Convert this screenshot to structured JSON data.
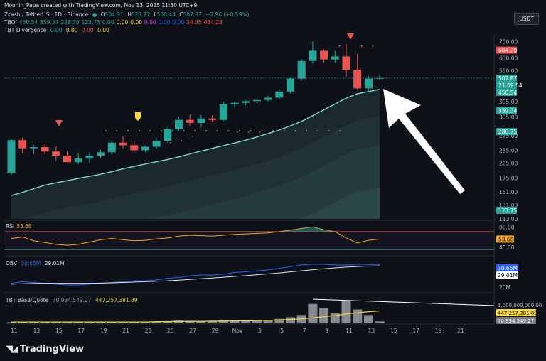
{
  "header": {
    "credit": "Moonin_Papa created with TradingView.com, Nov 13, 2025 11:50 UTC+9",
    "symbol": "Zcash / TetherUS · 1D · Binance",
    "ohlc": {
      "o_label": "O",
      "o": "504.91",
      "h_label": "H",
      "h": "528.77",
      "l_label": "L",
      "l": "500.44",
      "c_label": "C",
      "c": "507.87",
      "chg": "+2.96 (+0.59%)"
    },
    "tbo": {
      "label": "TBO",
      "values": [
        "450.54",
        "359.34",
        "286.75",
        "123.75",
        "0.00",
        "0.00",
        "0.00",
        "0.00",
        "0.00",
        "0.00",
        "34.85",
        "684.28"
      ]
    },
    "divergence": {
      "label": "TBT Divergence",
      "values": [
        "0.00",
        "0.00",
        "0.00",
        "0.00"
      ]
    },
    "currency": "USDT"
  },
  "colors": {
    "up": "#26a69a",
    "down": "#ef5350",
    "band": "#7fd8c8",
    "rsi": "#f5a623",
    "obv": "#2962ff",
    "obv_ma": "#e0e3eb",
    "volume": "#9598a1",
    "vol_ma": "#f5d742",
    "arrow": "#ffffff",
    "accent": "#f5d742"
  },
  "price_axis": {
    "ticks": [
      "750.00",
      "630.00",
      "550.00",
      "395.00",
      "335.00",
      "275.00",
      "235.00",
      "205.00",
      "175.00",
      "151.00",
      "131.00",
      "113.00"
    ],
    "badges": [
      {
        "text": "684.28",
        "color": "#ef5350"
      },
      {
        "text": "507.87",
        "color": "#26a69a"
      },
      {
        "text": "21:09:54",
        "color": "#26a69a"
      },
      {
        "text": "450.54",
        "color": "#26a69a"
      },
      {
        "text": "359.34",
        "color": "#26a69a"
      },
      {
        "text": "286.75",
        "color": "#26a69a"
      },
      {
        "text": "123.75",
        "color": "#26a69a"
      }
    ]
  },
  "x_axis": {
    "ticks": [
      "11",
      "13",
      "15",
      "17",
      "19",
      "21",
      "23",
      "25",
      "27",
      "29",
      "Nov",
      "3",
      "5",
      "7",
      "9",
      "11",
      "13",
      "15",
      "17",
      "19",
      "21"
    ]
  },
  "rsi": {
    "label": "RSI",
    "value": "53.68",
    "ticks": [
      "80.00",
      "40.00"
    ],
    "badge": "53.68",
    "upper": 70,
    "lower": 30
  },
  "obv": {
    "label": "OBV",
    "value1": "30.65M",
    "value2": "29.01M",
    "badges": [
      "30.65M",
      "29.01M"
    ],
    "tick": "20M"
  },
  "volume_pane": {
    "label": "TBT Base/Quote",
    "value1": "70,934,549.27",
    "value2": "447,257,381.89",
    "tick": "1,000,000,000.00",
    "badges": [
      "447,257,381.89",
      "70,934,549.27"
    ]
  },
  "chart_data": {
    "type": "candlestick",
    "symbol": "ZEC/USDT",
    "timeframe": "1D",
    "candles": [
      {
        "o": 185,
        "h": 265,
        "l": 180,
        "c": 262
      },
      {
        "o": 262,
        "h": 270,
        "l": 228,
        "c": 240
      },
      {
        "o": 240,
        "h": 250,
        "l": 225,
        "c": 243
      },
      {
        "o": 243,
        "h": 252,
        "l": 225,
        "c": 232
      },
      {
        "o": 232,
        "h": 245,
        "l": 210,
        "c": 222
      },
      {
        "o": 222,
        "h": 232,
        "l": 212,
        "c": 207
      },
      {
        "o": 207,
        "h": 228,
        "l": 203,
        "c": 215
      },
      {
        "o": 215,
        "h": 230,
        "l": 205,
        "c": 222
      },
      {
        "o": 222,
        "h": 236,
        "l": 215,
        "c": 230
      },
      {
        "o": 230,
        "h": 262,
        "l": 225,
        "c": 255
      },
      {
        "o": 255,
        "h": 272,
        "l": 240,
        "c": 248
      },
      {
        "o": 248,
        "h": 258,
        "l": 228,
        "c": 235
      },
      {
        "o": 235,
        "h": 248,
        "l": 230,
        "c": 244
      },
      {
        "o": 244,
        "h": 268,
        "l": 238,
        "c": 260
      },
      {
        "o": 260,
        "h": 300,
        "l": 255,
        "c": 295
      },
      {
        "o": 295,
        "h": 335,
        "l": 290,
        "c": 325
      },
      {
        "o": 325,
        "h": 345,
        "l": 305,
        "c": 315
      },
      {
        "o": 315,
        "h": 342,
        "l": 300,
        "c": 330
      },
      {
        "o": 330,
        "h": 340,
        "l": 318,
        "c": 325
      },
      {
        "o": 325,
        "h": 395,
        "l": 320,
        "c": 385
      },
      {
        "o": 385,
        "h": 395,
        "l": 370,
        "c": 390
      },
      {
        "o": 390,
        "h": 402,
        "l": 380,
        "c": 397
      },
      {
        "o": 397,
        "h": 408,
        "l": 388,
        "c": 402
      },
      {
        "o": 402,
        "h": 420,
        "l": 395,
        "c": 412
      },
      {
        "o": 412,
        "h": 450,
        "l": 405,
        "c": 440
      },
      {
        "o": 440,
        "h": 510,
        "l": 432,
        "c": 505
      },
      {
        "o": 505,
        "h": 620,
        "l": 495,
        "c": 610
      },
      {
        "o": 610,
        "h": 750,
        "l": 595,
        "c": 680
      },
      {
        "o": 680,
        "h": 690,
        "l": 600,
        "c": 620
      },
      {
        "o": 620,
        "h": 680,
        "l": 600,
        "c": 640
      },
      {
        "o": 640,
        "h": 730,
        "l": 515,
        "c": 555
      },
      {
        "o": 555,
        "h": 660,
        "l": 450,
        "c": 455
      },
      {
        "o": 455,
        "h": 520,
        "l": 440,
        "c": 505
      },
      {
        "o": 504.91,
        "h": 528.77,
        "l": 500.44,
        "c": 507.87
      }
    ],
    "band_upper": [
      145,
      150,
      156,
      162,
      166,
      170,
      174,
      178,
      182,
      187,
      193,
      198,
      203,
      208,
      213,
      219,
      226,
      233,
      240,
      247,
      254,
      262,
      271,
      281,
      292,
      305,
      320,
      340,
      362,
      385,
      410,
      430,
      440,
      450.54
    ],
    "rsi_values": [
      55,
      58,
      50,
      46,
      42,
      40,
      42,
      47,
      52,
      55,
      52,
      50,
      51,
      54,
      56,
      60,
      62,
      61,
      60,
      62,
      64,
      65,
      66,
      67,
      70,
      73,
      77,
      80,
      74,
      70,
      56,
      45,
      51,
      53.68
    ],
    "obv_values": [
      8,
      10,
      9,
      8,
      7,
      6,
      6,
      7,
      8,
      9,
      10,
      11,
      11,
      12,
      14,
      15,
      17,
      18,
      18,
      19,
      21,
      22,
      23,
      24,
      26,
      28,
      30,
      31,
      31,
      30,
      30,
      31,
      30.5,
      30.65
    ],
    "obv_ma": [
      7,
      7.5,
      7.8,
      8,
      8,
      8,
      8,
      8,
      8.3,
      8.6,
      9,
      9.5,
      10,
      10.5,
      11,
      11.8,
      12.6,
      13.5,
      14.4,
      15.3,
      16.3,
      17.3,
      18.3,
      19.3,
      20.5,
      21.7,
      23,
      24.3,
      25.5,
      26.6,
      27.5,
      28.2,
      28.7,
      29.01
    ],
    "volume_values": [
      0.04,
      0.05,
      0.04,
      0.04,
      0.05,
      0.04,
      0.04,
      0.04,
      0.05,
      0.05,
      0.06,
      0.05,
      0.05,
      0.06,
      0.08,
      0.1,
      0.09,
      0.08,
      0.08,
      0.12,
      0.1,
      0.09,
      0.1,
      0.12,
      0.16,
      0.22,
      0.3,
      0.7,
      0.55,
      0.38,
      0.8,
      0.5,
      0.3,
      0.07
    ],
    "volume_ma": [
      0.05,
      0.05,
      0.05,
      0.05,
      0.05,
      0.05,
      0.05,
      0.05,
      0.05,
      0.05,
      0.05,
      0.05,
      0.05,
      0.06,
      0.06,
      0.07,
      0.07,
      0.07,
      0.08,
      0.08,
      0.09,
      0.09,
      0.1,
      0.11,
      0.12,
      0.14,
      0.16,
      0.2,
      0.24,
      0.28,
      0.34,
      0.38,
      0.42,
      0.447
    ]
  }
}
